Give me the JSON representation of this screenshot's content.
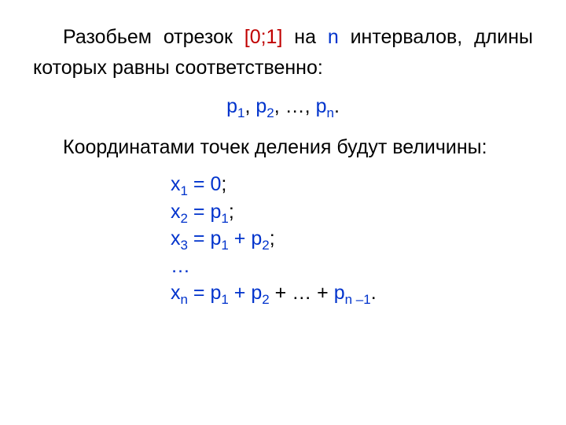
{
  "colors": {
    "text": "#000000",
    "formula_red": "#c00000",
    "formula_blue": "#0033cc",
    "background": "#ffffff"
  },
  "typography": {
    "font_family": "Arial",
    "body_fontsize_pt": 19,
    "subscript_ratio": 0.68,
    "line_height_body": 1.55,
    "line_height_eq": 1.38
  },
  "para1": {
    "t1": "Разобьем отрезок ",
    "interval": "[0;1]",
    "t2": " на ",
    "nvar": "n",
    "t3": " интервалов, длины которых равны соответственно:"
  },
  "p_list": {
    "p": "p",
    "s1": "1",
    "sep": ", ",
    "s2": "2",
    "ell": ", …, ",
    "sn": "n",
    "dot": "."
  },
  "para2": "Координатами точек деления будут величины:",
  "eq": {
    "x": "x",
    "p": "p",
    "eq": " = ",
    "plus": " + ",
    "ell_plus": " + … + ",
    "semi": ";",
    "dot": ".",
    "zero": "0",
    "dots_row": "…",
    "s1": "1",
    "s2": "2",
    "s3": "3",
    "sn": "n",
    "sn_minus_1": "n –1"
  }
}
